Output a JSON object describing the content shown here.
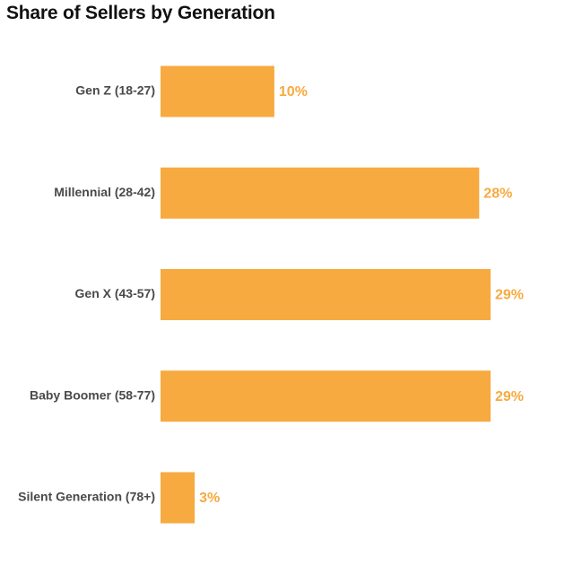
{
  "chart_data": {
    "type": "bar",
    "orientation": "horizontal",
    "title": "Share of Sellers by Generation",
    "categories": [
      "Gen Z (18-27)",
      "Millennial (28-42)",
      "Gen X (43-57)",
      "Baby Boomer (58-77)",
      "Silent Generation (78+)"
    ],
    "values": [
      10,
      28,
      29,
      29,
      3
    ],
    "value_labels": [
      "10%",
      "28%",
      "29%",
      "29%",
      "3%"
    ],
    "unit": "%",
    "xlim": [
      0,
      29
    ],
    "grid": false,
    "legend": "none",
    "bar_color": "#f7aa3f",
    "label_color": "#f7aa3f"
  }
}
